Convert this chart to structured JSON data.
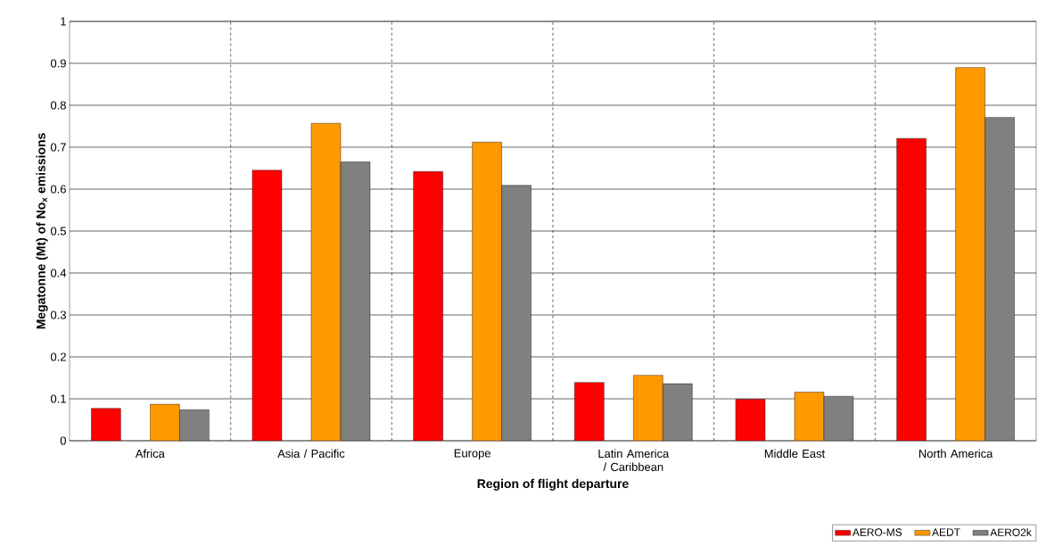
{
  "chart_data": {
    "type": "bar",
    "xlabel": "Region of flight departure",
    "ylabel": "Megatonne (Mt) of No$_{x}$ emissions",
    "categories": [
      "Africa",
      "Asia / Pacific",
      "Europe",
      "Latin America / Caribbean",
      "Middle East",
      "North America"
    ],
    "series": [
      {
        "name": "AERO-MS",
        "color": "#ff0000",
        "values": [
          0.077,
          0.645,
          0.642,
          0.139,
          0.099,
          0.721
        ]
      },
      {
        "name": "AEDT",
        "color": "#ff9900",
        "values": [
          0.087,
          0.757,
          0.712,
          0.156,
          0.116,
          0.89
        ]
      },
      {
        "name": "AERO2k",
        "color": "#808080",
        "values": [
          0.074,
          0.665,
          0.609,
          0.136,
          0.106,
          0.771
        ]
      }
    ],
    "ylim": [
      0,
      1
    ],
    "yticks": [
      0,
      0.1,
      0.2,
      0.3,
      0.4,
      0.5,
      0.6,
      0.7,
      0.8,
      0.9,
      1
    ],
    "grid": true,
    "legend": "bottom right"
  }
}
